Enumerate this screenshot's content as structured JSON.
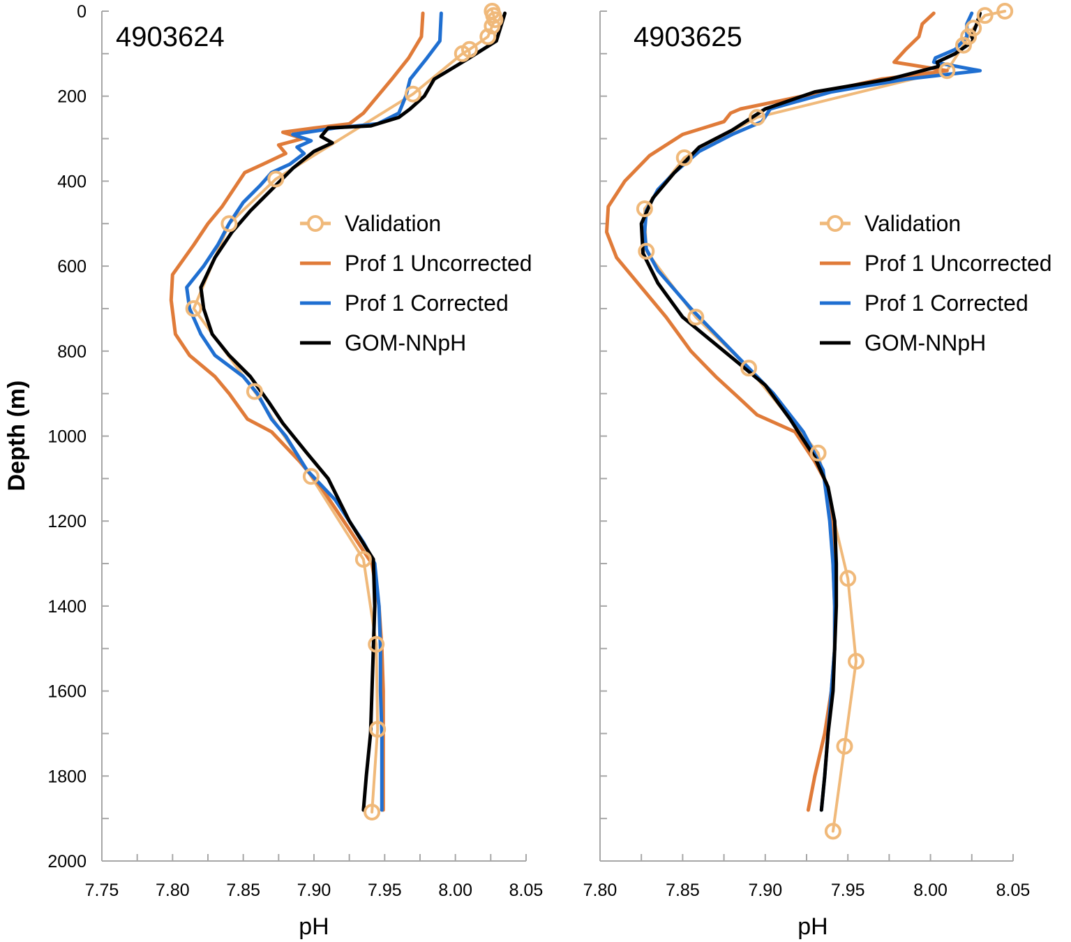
{
  "chart_data": [
    {
      "type": "line",
      "title": "4903624",
      "ylabel": "Depth (m)",
      "xlabel": "pH",
      "xlim": [
        7.75,
        8.05
      ],
      "ylim": [
        0,
        2000
      ],
      "y_inverted": true,
      "xticks": [
        "7.75",
        "7.80",
        "7.85",
        "7.90",
        "7.95",
        "8.00",
        "8.05"
      ],
      "yticks": [
        "0",
        "200",
        "400",
        "600",
        "800",
        "1000",
        "1200",
        "1400",
        "1600",
        "1800",
        "2000"
      ],
      "legend_position": "center-right",
      "grid": false,
      "series": [
        {
          "name": "Validation",
          "color": "#F0B97A",
          "marker": "circle",
          "points": [
            [
              8.026,
              0
            ],
            [
              8.027,
              10
            ],
            [
              8.028,
              20
            ],
            [
              8.026,
              35
            ],
            [
              8.023,
              60
            ],
            [
              8.01,
              90
            ],
            [
              8.005,
              100
            ],
            [
              7.97,
              195
            ],
            [
              7.873,
              395
            ],
            [
              7.84,
              500
            ],
            [
              7.815,
              700
            ],
            [
              7.858,
              895
            ],
            [
              7.898,
              1095
            ],
            [
              7.935,
              1290
            ],
            [
              7.944,
              1490
            ],
            [
              7.945,
              1690
            ],
            [
              7.941,
              1885
            ]
          ]
        },
        {
          "name": "Prof 1 Uncorrected",
          "color": "#E07B39",
          "marker": "none",
          "points": [
            [
              7.977,
              5
            ],
            [
              7.976,
              60
            ],
            [
              7.967,
              110
            ],
            [
              7.955,
              160
            ],
            [
              7.945,
              200
            ],
            [
              7.935,
              240
            ],
            [
              7.925,
              265
            ],
            [
              7.9,
              275
            ],
            [
              7.878,
              285
            ],
            [
              7.892,
              300
            ],
            [
              7.875,
              315
            ],
            [
              7.88,
              335
            ],
            [
              7.864,
              360
            ],
            [
              7.851,
              380
            ],
            [
              7.845,
              410
            ],
            [
              7.835,
              460
            ],
            [
              7.825,
              500
            ],
            [
              7.815,
              550
            ],
            [
              7.8,
              620
            ],
            [
              7.799,
              680
            ],
            [
              7.802,
              760
            ],
            [
              7.812,
              810
            ],
            [
              7.83,
              860
            ],
            [
              7.84,
              900
            ],
            [
              7.853,
              960
            ],
            [
              7.87,
              990
            ],
            [
              7.89,
              1060
            ],
            [
              7.905,
              1120
            ],
            [
              7.925,
              1220
            ],
            [
              7.941,
              1300
            ],
            [
              7.946,
              1400
            ],
            [
              7.948,
              1500
            ],
            [
              7.949,
              1600
            ],
            [
              7.949,
              1700
            ],
            [
              7.949,
              1800
            ],
            [
              7.949,
              1880
            ]
          ]
        },
        {
          "name": "Prof 1 Corrected",
          "color": "#1F6FD1",
          "marker": "none",
          "points": [
            [
              7.99,
              5
            ],
            [
              7.989,
              70
            ],
            [
              7.98,
              110
            ],
            [
              7.968,
              160
            ],
            [
              7.965,
              200
            ],
            [
              7.96,
              240
            ],
            [
              7.945,
              265
            ],
            [
              7.915,
              275
            ],
            [
              7.885,
              290
            ],
            [
              7.898,
              305
            ],
            [
              7.888,
              320
            ],
            [
              7.893,
              335
            ],
            [
              7.883,
              360
            ],
            [
              7.87,
              380
            ],
            [
              7.862,
              410
            ],
            [
              7.85,
              450
            ],
            [
              7.84,
              500
            ],
            [
              7.832,
              550
            ],
            [
              7.822,
              600
            ],
            [
              7.81,
              650
            ],
            [
              7.812,
              700
            ],
            [
              7.82,
              760
            ],
            [
              7.83,
              810
            ],
            [
              7.85,
              860
            ],
            [
              7.86,
              900
            ],
            [
              7.87,
              960
            ],
            [
              7.88,
              1000
            ],
            [
              7.895,
              1080
            ],
            [
              7.915,
              1150
            ],
            [
              7.935,
              1250
            ],
            [
              7.943,
              1300
            ],
            [
              7.946,
              1400
            ],
            [
              7.947,
              1500
            ],
            [
              7.947,
              1600
            ],
            [
              7.948,
              1700
            ],
            [
              7.948,
              1800
            ],
            [
              7.948,
              1880
            ]
          ]
        },
        {
          "name": "GOM-NNpH",
          "color": "#000000",
          "marker": "none",
          "points": [
            [
              8.035,
              5
            ],
            [
              8.029,
              70
            ],
            [
              8.01,
              110
            ],
            [
              7.985,
              160
            ],
            [
              7.978,
              200
            ],
            [
              7.968,
              230
            ],
            [
              7.96,
              250
            ],
            [
              7.94,
              270
            ],
            [
              7.91,
              275
            ],
            [
              7.905,
              295
            ],
            [
              7.913,
              310
            ],
            [
              7.9,
              330
            ],
            [
              7.885,
              370
            ],
            [
              7.87,
              420
            ],
            [
              7.855,
              470
            ],
            [
              7.842,
              520
            ],
            [
              7.83,
              580
            ],
            [
              7.82,
              650
            ],
            [
              7.822,
              700
            ],
            [
              7.828,
              760
            ],
            [
              7.84,
              810
            ],
            [
              7.855,
              860
            ],
            [
              7.868,
              920
            ],
            [
              7.878,
              970
            ],
            [
              7.895,
              1040
            ],
            [
              7.91,
              1100
            ],
            [
              7.925,
              1200
            ],
            [
              7.942,
              1290
            ],
            [
              7.943,
              1400
            ],
            [
              7.942,
              1500
            ],
            [
              7.941,
              1600
            ],
            [
              7.94,
              1700
            ],
            [
              7.937,
              1800
            ],
            [
              7.935,
              1880
            ]
          ]
        }
      ]
    },
    {
      "type": "line",
      "title": "4903625",
      "ylabel": "",
      "xlabel": "pH",
      "xlim": [
        7.8,
        8.05
      ],
      "ylim": [
        0,
        2000
      ],
      "y_inverted": true,
      "xticks": [
        "7.80",
        "7.85",
        "7.90",
        "7.95",
        "8.00",
        "8.05"
      ],
      "yticks": [],
      "legend_position": "center-right",
      "grid": false,
      "series": [
        {
          "name": "Validation",
          "color": "#F0B97A",
          "marker": "circle",
          "points": [
            [
              8.045,
              0
            ],
            [
              8.033,
              10
            ],
            [
              8.026,
              40
            ],
            [
              8.023,
              60
            ],
            [
              8.02,
              80
            ],
            [
              8.01,
              140
            ],
            [
              7.895,
              250
            ],
            [
              7.851,
              345
            ],
            [
              7.827,
              465
            ],
            [
              7.828,
              565
            ],
            [
              7.858,
              720
            ],
            [
              7.89,
              840
            ],
            [
              7.932,
              1040
            ],
            [
              7.95,
              1335
            ],
            [
              7.955,
              1530
            ],
            [
              7.948,
              1730
            ],
            [
              7.941,
              1930
            ]
          ]
        },
        {
          "name": "Prof 1 Uncorrected",
          "color": "#E07B39",
          "marker": "none",
          "points": [
            [
              8.002,
              5
            ],
            [
              7.995,
              30
            ],
            [
              7.993,
              60
            ],
            [
              7.985,
              90
            ],
            [
              7.978,
              120
            ],
            [
              8.01,
              140
            ],
            [
              7.97,
              160
            ],
            [
              7.935,
              190
            ],
            [
              7.91,
              210
            ],
            [
              7.885,
              230
            ],
            [
              7.879,
              240
            ],
            [
              7.875,
              260
            ],
            [
              7.85,
              290
            ],
            [
              7.83,
              340
            ],
            [
              7.815,
              400
            ],
            [
              7.805,
              460
            ],
            [
              7.804,
              520
            ],
            [
              7.81,
              580
            ],
            [
              7.825,
              650
            ],
            [
              7.84,
              720
            ],
            [
              7.855,
              800
            ],
            [
              7.87,
              860
            ],
            [
              7.884,
              910
            ],
            [
              7.895,
              950
            ],
            [
              7.918,
              990
            ],
            [
              7.93,
              1060
            ],
            [
              7.937,
              1110
            ],
            [
              7.94,
              1200
            ],
            [
              7.941,
              1300
            ],
            [
              7.942,
              1400
            ],
            [
              7.942,
              1500
            ],
            [
              7.94,
              1600
            ],
            [
              7.936,
              1700
            ],
            [
              7.93,
              1800
            ],
            [
              7.926,
              1880
            ]
          ]
        },
        {
          "name": "Prof 1 Corrected",
          "color": "#1F6FD1",
          "marker": "none",
          "points": [
            [
              8.025,
              5
            ],
            [
              8.022,
              30
            ],
            [
              8.022,
              60
            ],
            [
              8.015,
              90
            ],
            [
              8.003,
              110
            ],
            [
              8.002,
              120
            ],
            [
              8.03,
              140
            ],
            [
              7.985,
              160
            ],
            [
              7.94,
              190
            ],
            [
              7.903,
              230
            ],
            [
              7.898,
              260
            ],
            [
              7.88,
              290
            ],
            [
              7.86,
              330
            ],
            [
              7.845,
              380
            ],
            [
              7.835,
              420
            ],
            [
              7.828,
              470
            ],
            [
              7.827,
              520
            ],
            [
              7.828,
              560
            ],
            [
              7.835,
              610
            ],
            [
              7.855,
              700
            ],
            [
              7.88,
              800
            ],
            [
              7.905,
              900
            ],
            [
              7.923,
              990
            ],
            [
              7.935,
              1080
            ],
            [
              7.939,
              1200
            ],
            [
              7.941,
              1300
            ],
            [
              7.942,
              1400
            ],
            [
              7.942,
              1500
            ],
            [
              7.94,
              1600
            ],
            [
              7.938,
              1700
            ],
            [
              7.936,
              1800
            ],
            [
              7.934,
              1880
            ]
          ]
        },
        {
          "name": "GOM-NNpH",
          "color": "#000000",
          "marker": "none",
          "points": [
            [
              8.03,
              5
            ],
            [
              8.028,
              30
            ],
            [
              8.025,
              60
            ],
            [
              8.026,
              70
            ],
            [
              8.015,
              100
            ],
            [
              8.004,
              120
            ],
            [
              8.005,
              130
            ],
            [
              7.975,
              160
            ],
            [
              7.93,
              190
            ],
            [
              7.9,
              230
            ],
            [
              7.88,
              280
            ],
            [
              7.86,
              320
            ],
            [
              7.845,
              380
            ],
            [
              7.832,
              440
            ],
            [
              7.825,
              500
            ],
            [
              7.826,
              570
            ],
            [
              7.835,
              640
            ],
            [
              7.85,
              720
            ],
            [
              7.875,
              800
            ],
            [
              7.9,
              880
            ],
            [
              7.915,
              960
            ],
            [
              7.93,
              1050
            ],
            [
              7.938,
              1120
            ],
            [
              7.942,
              1200
            ],
            [
              7.943,
              1300
            ],
            [
              7.943,
              1400
            ],
            [
              7.942,
              1500
            ],
            [
              7.941,
              1600
            ],
            [
              7.938,
              1700
            ],
            [
              7.936,
              1800
            ],
            [
              7.934,
              1880
            ]
          ]
        }
      ]
    }
  ]
}
